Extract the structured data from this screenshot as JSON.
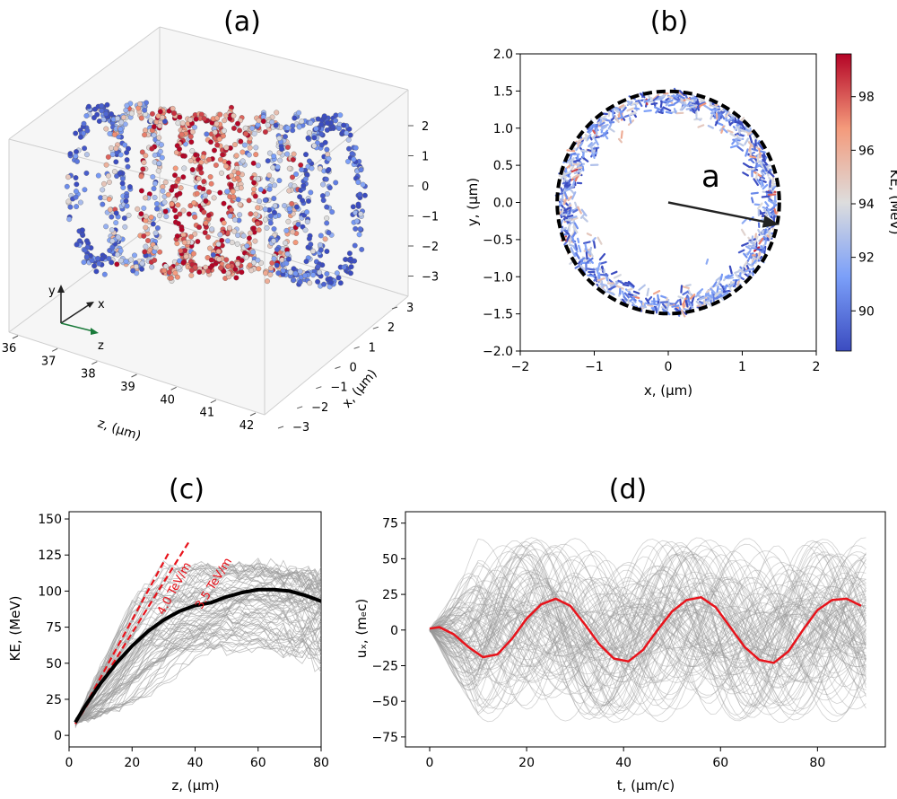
{
  "chart_data": [
    {
      "panel": "(a)",
      "type": "scatter",
      "subtype": "3d-scatter",
      "title": "(a)",
      "zlabel": "z, (μm)",
      "xlabel": "x, (μm)",
      "z_ticks": [
        "36",
        "37",
        "38",
        "39",
        "40",
        "41",
        "42"
      ],
      "x_ticks": [
        "3",
        "2",
        "1",
        "0",
        "−1",
        "−2",
        "−3"
      ],
      "y_ticks": [
        "2",
        "1",
        "0",
        "−1",
        "−2",
        "−3"
      ],
      "axis_triad": [
        "y",
        "x",
        "z"
      ],
      "colormap": "coolwarm",
      "description_colors": {
        "low": "#3b4cc0",
        "mid": "#dddddd",
        "high": "#b40426"
      }
    },
    {
      "panel": "(b)",
      "type": "scatter",
      "subtype": "quiver",
      "title": "(b)",
      "xlabel": "x, (μm)",
      "ylabel": "y, (μm)",
      "xlim": [
        -2,
        2
      ],
      "ylim": [
        -2,
        2
      ],
      "x_ticks": [
        "−2",
        "−1",
        "0",
        "1",
        "2"
      ],
      "y_ticks": [
        "−2.0",
        "−1.5",
        "−1.0",
        "−0.5",
        "0.0",
        "0.5",
        "1.0",
        "1.5",
        "2.0"
      ],
      "ring_radius": 1.5,
      "annotation": "a",
      "arrow_end": [
        1.5,
        -0.3
      ],
      "colorbar": {
        "label": "KE, (MeV)",
        "ticks": [
          "90",
          "92",
          "94",
          "96",
          "98"
        ],
        "min": 88.5,
        "max": 99.6
      }
    },
    {
      "panel": "(c)",
      "type": "line",
      "title": "(c)",
      "xlabel": "z, (μm)",
      "ylabel": "KE, (MeV)",
      "xlim": [
        0,
        80
      ],
      "ylim": [
        -8,
        155
      ],
      "x_ticks": [
        "0",
        "20",
        "40",
        "60",
        "80"
      ],
      "y_ticks": [
        "0",
        "25",
        "50",
        "75",
        "100",
        "125",
        "150"
      ],
      "annotations": [
        "4.0 TeV/m",
        "3.5 TeV/m"
      ],
      "fit_lines": [
        {
          "x": [
            2,
            32
          ],
          "y": [
            8,
            128
          ]
        },
        {
          "x": [
            2,
            38
          ],
          "y": [
            8,
            134
          ]
        }
      ],
      "mean_curve": {
        "x": [
          2,
          5,
          10,
          15,
          20,
          25,
          30,
          35,
          40,
          45,
          50,
          55,
          60,
          65,
          70,
          75,
          80
        ],
        "y": [
          9,
          20,
          36,
          50,
          62,
          72,
          80,
          86,
          90,
          92,
          96,
          99,
          101,
          101,
          100,
          97,
          93
        ]
      }
    },
    {
      "panel": "(d)",
      "type": "line",
      "title": "(d)",
      "xlabel": "t, (μm/c)",
      "ylabel": "uₓ, (mₑc)",
      "xlim": [
        -5,
        94
      ],
      "ylim": [
        -82,
        83
      ],
      "x_ticks": [
        "0",
        "20",
        "40",
        "60",
        "80"
      ],
      "y_ticks": [
        "−75",
        "−50",
        "−25",
        "0",
        "25",
        "50",
        "75"
      ],
      "highlight": {
        "x": [
          0,
          2,
          5,
          8,
          11,
          14,
          17,
          20,
          23,
          26,
          29,
          32,
          35,
          38,
          41,
          44,
          47,
          50,
          53,
          56,
          59,
          62,
          65,
          68,
          71,
          74,
          77,
          80,
          83,
          86,
          89
        ],
        "y": [
          1,
          2,
          -3,
          -12,
          -19,
          -17,
          -6,
          8,
          18,
          22,
          17,
          4,
          -10,
          -20,
          -22,
          -14,
          0,
          13,
          21,
          23,
          16,
          2,
          -12,
          -21,
          -23,
          -15,
          0,
          14,
          21,
          22,
          17
        ]
      }
    }
  ]
}
